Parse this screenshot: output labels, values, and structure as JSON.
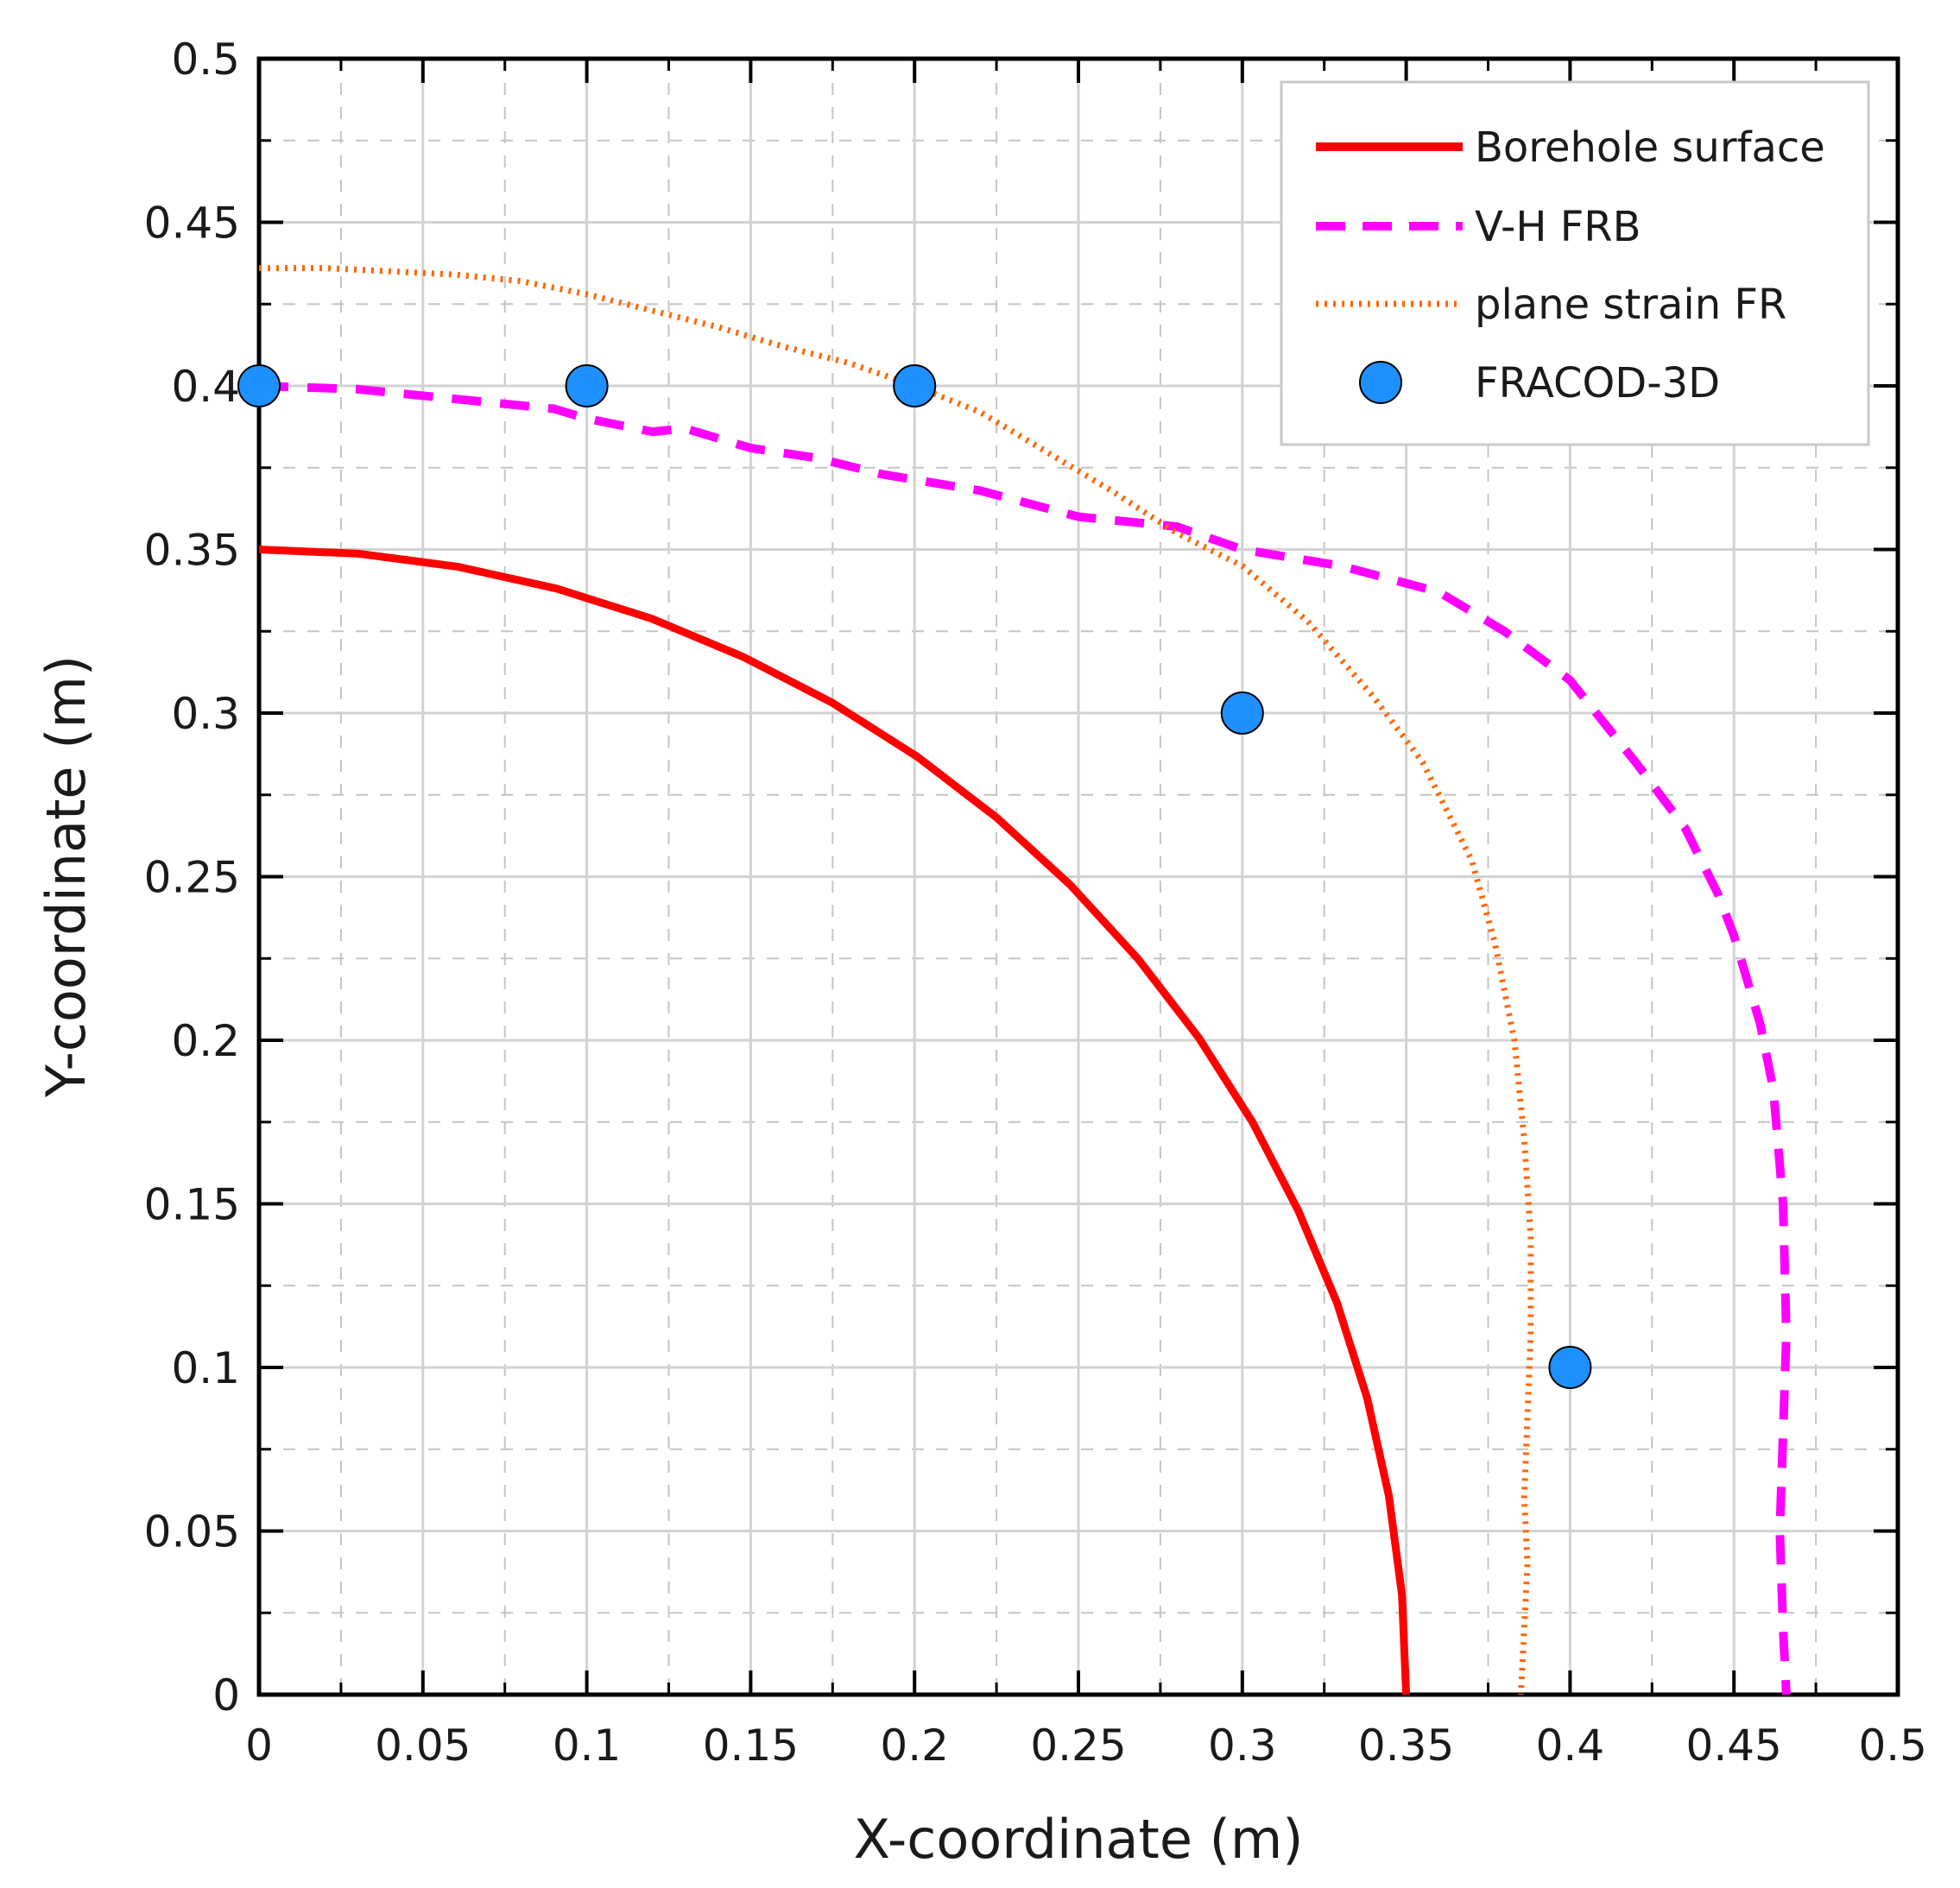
{
  "chart_data": {
    "type": "line",
    "title": "",
    "xlabel": "X-coordinate (m)",
    "ylabel": "Y-coordinate (m)",
    "xlim": [
      0,
      0.5
    ],
    "ylim": [
      0,
      0.5
    ],
    "xticks": [
      0,
      0.05,
      0.1,
      0.15,
      0.2,
      0.25,
      0.3,
      0.35,
      0.4,
      0.45,
      0.5
    ],
    "yticks": [
      0,
      0.05,
      0.1,
      0.15,
      0.2,
      0.25,
      0.3,
      0.35,
      0.4,
      0.45,
      0.5
    ],
    "xtick_labels": [
      "0",
      "0.05",
      "0.1",
      "0.15",
      "0.2",
      "0.25",
      "0.3",
      "0.35",
      "0.4",
      "0.45",
      "0.5"
    ],
    "ytick_labels": [
      "0",
      "0.05",
      "0.1",
      "0.15",
      "0.2",
      "0.25",
      "0.3",
      "0.35",
      "0.4",
      "0.45",
      "0.5"
    ],
    "grid": true,
    "legend_position": "top-right",
    "series": [
      {
        "name": "Borehole surface",
        "style": "solid",
        "color": "#ff0000",
        "x": [
          0,
          0.0305,
          0.0608,
          0.0906,
          0.1197,
          0.1479,
          0.175,
          0.2008,
          0.225,
          0.2475,
          0.2681,
          0.2867,
          0.3031,
          0.3171,
          0.3289,
          0.3381,
          0.3447,
          0.3487,
          0.35
        ],
        "y": [
          0.35,
          0.3487,
          0.3447,
          0.3381,
          0.3289,
          0.3171,
          0.3031,
          0.2867,
          0.2681,
          0.2475,
          0.225,
          0.2008,
          0.175,
          0.1479,
          0.1197,
          0.0906,
          0.0608,
          0.0305,
          0
        ]
      },
      {
        "name": "V-H FRB",
        "style": "dashed",
        "color": "#ff00ff",
        "x": [
          0,
          0.03,
          0.06,
          0.09,
          0.1,
          0.12,
          0.13,
          0.15,
          0.17,
          0.19,
          0.22,
          0.25,
          0.28,
          0.3,
          0.33,
          0.36,
          0.38,
          0.4,
          0.42,
          0.435,
          0.445,
          0.45,
          0.458,
          0.462,
          0.465,
          0.466,
          0.465,
          0.464,
          0.465,
          0.466
        ],
        "y": [
          0.4,
          0.399,
          0.396,
          0.393,
          0.39,
          0.386,
          0.387,
          0.381,
          0.378,
          0.373,
          0.368,
          0.36,
          0.357,
          0.35,
          0.345,
          0.337,
          0.325,
          0.31,
          0.285,
          0.265,
          0.245,
          0.232,
          0.205,
          0.185,
          0.15,
          0.11,
          0.08,
          0.05,
          0.02,
          0
        ]
      },
      {
        "name": "plane strain FR",
        "style": "dotted",
        "color": "#ff6600",
        "x": [
          0,
          0.02,
          0.04,
          0.06,
          0.08,
          0.1,
          0.12,
          0.14,
          0.16,
          0.18,
          0.2,
          0.22,
          0.24,
          0.26,
          0.28,
          0.3,
          0.32,
          0.34,
          0.355,
          0.37,
          0.377,
          0.383,
          0.386,
          0.388,
          0.388,
          0.387,
          0.386,
          0.387,
          0.386,
          0.385
        ],
        "y": [
          0.436,
          0.436,
          0.435,
          0.434,
          0.432,
          0.428,
          0.423,
          0.418,
          0.412,
          0.407,
          0.4,
          0.392,
          0.38,
          0.368,
          0.355,
          0.345,
          0.328,
          0.305,
          0.285,
          0.255,
          0.23,
          0.2,
          0.17,
          0.14,
          0.11,
          0.085,
          0.06,
          0.04,
          0.02,
          0
        ]
      },
      {
        "name": "FRACOD-3D",
        "style": "markers",
        "color": "#1e90ff",
        "x": [
          0,
          0.1,
          0.2,
          0.3,
          0.4
        ],
        "y": [
          0.4,
          0.4,
          0.4,
          0.3,
          0.1
        ]
      }
    ]
  }
}
